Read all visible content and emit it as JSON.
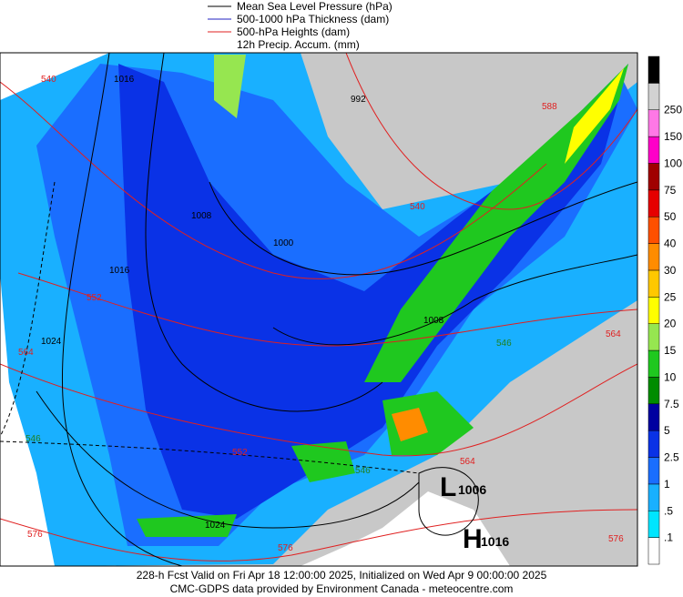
{
  "legend": {
    "items": [
      "Mean Sea Level Pressure (hPa)",
      "500-1000 hPa Thickness (dam)",
      "500-hPa Heights (dam)",
      "12h Precip. Accum. (mm)"
    ]
  },
  "colorbar": {
    "labels": [
      ".1",
      ".5",
      "1",
      "2.5",
      "5",
      "7.5",
      "10",
      "15",
      "20",
      "25",
      "30",
      "40",
      "50",
      "75",
      "100",
      "150",
      "250"
    ]
  },
  "map": {
    "height_labels": [
      "540",
      "552",
      "564",
      "576",
      "540",
      "552",
      "564",
      "576",
      "588",
      "564",
      "576"
    ],
    "pressure_labels": [
      "1016",
      "1024",
      "1008",
      "1000",
      "992",
      "1008",
      "1016",
      "1024"
    ],
    "thickness_labels": [
      "546",
      "546",
      "546"
    ],
    "centers": [
      {
        "symbol": "L",
        "value": "1006"
      },
      {
        "symbol": "H",
        "value": "1016"
      }
    ]
  },
  "footer": {
    "lines": [
      "228-h Fcst Valid on Fri Apr 18 12:00:00 2025, Initialized on Wed Apr  9 00:00:00 2025",
      "CMC-GDPS data provided by Environment Canada - meteocentre.com"
    ]
  }
}
